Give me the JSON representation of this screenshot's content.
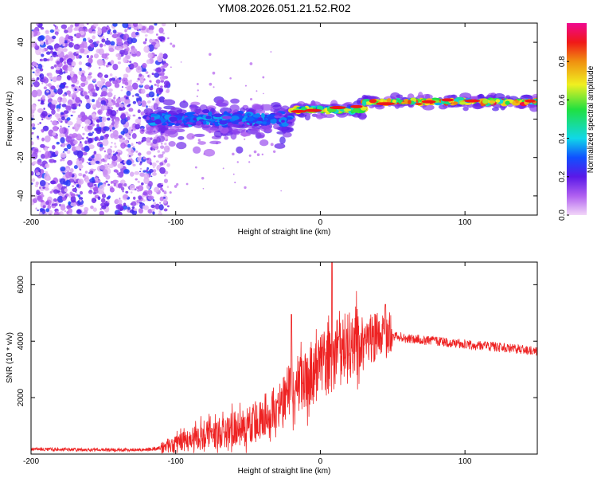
{
  "chart_data": [
    {
      "type": "heatmap",
      "title": "YM08.2026.051.21.52.R02",
      "xlabel": "Height of straight line (km)",
      "ylabel": "Frequency (Hz)",
      "xlim": [
        -200,
        150
      ],
      "ylim": [
        -50,
        50
      ],
      "xticks": [
        -200,
        -100,
        0,
        100
      ],
      "xtick_labels": [
        "-200",
        "-100",
        "0",
        "100"
      ],
      "yticks": [
        -40,
        -20,
        0,
        20,
        40
      ],
      "ytick_labels": [
        "-40",
        "-20",
        "0",
        "20",
        "40"
      ],
      "colorbar": {
        "label": "Normalized spectral amplitude",
        "range": [
          0.0,
          1.0
        ],
        "ticks": [
          0.0,
          0.2,
          0.4,
          0.6,
          0.8
        ],
        "tick_labels": [
          "0.0",
          "0.2",
          "0.4",
          "0.6",
          "0.8"
        ],
        "colormap": "rainbow (violet → blue → cyan → green → yellow → red → magenta)"
      },
      "regions": [
        {
          "x": [
            -200,
            -105
          ],
          "freq_center": 0,
          "freq_spread": 50,
          "amplitude": 0.05,
          "description": "scattered low-amplitude noise"
        },
        {
          "x": [
            -120,
            -20
          ],
          "freq_center": 0,
          "freq_spread": 8,
          "amplitude": 0.3
        },
        {
          "x": [
            -20,
            30
          ],
          "freq_center": 5,
          "freq_spread": 3,
          "amplitude": 0.6
        },
        {
          "x": [
            30,
            150
          ],
          "freq_center": 9,
          "freq_spread": 3,
          "amplitude": 0.75
        }
      ]
    },
    {
      "type": "line",
      "xlabel": "Height of straight line (km)",
      "ylabel": "SNR (10 * v/v)",
      "xlim": [
        -200,
        150
      ],
      "ylim": [
        0,
        6800
      ],
      "xticks": [
        -200,
        -100,
        0,
        100
      ],
      "xtick_labels": [
        "-200",
        "-100",
        "0",
        "100"
      ],
      "yticks": [
        2000,
        4000,
        6000
      ],
      "ytick_labels": [
        "2000",
        "4000",
        "6000"
      ],
      "line_color": "#ee2222",
      "series": [
        {
          "name": "SNR",
          "x": [
            -200,
            -180,
            -160,
            -140,
            -120,
            -110,
            -100,
            -90,
            -80,
            -70,
            -60,
            -50,
            -40,
            -30,
            -25,
            -20,
            -15,
            -10,
            -5,
            0,
            5,
            10,
            15,
            20,
            25,
            30,
            35,
            40,
            45,
            50,
            60,
            70,
            80,
            90,
            100,
            110,
            120,
            130,
            140,
            150
          ],
          "y": [
            180,
            160,
            150,
            150,
            160,
            220,
            350,
            500,
            650,
            750,
            850,
            1000,
            1250,
            1600,
            2000,
            2300,
            2500,
            2650,
            2850,
            3050,
            3250,
            3500,
            3650,
            3800,
            3950,
            4050,
            4100,
            4200,
            4200,
            4200,
            4100,
            4050,
            4000,
            3950,
            3900,
            3850,
            3800,
            3750,
            3700,
            3650
          ]
        }
      ],
      "spikes": [
        {
          "x": -20,
          "y": 4950
        },
        {
          "x": 8,
          "y": 6800
        },
        {
          "x": 45,
          "y": 5300
        }
      ]
    }
  ]
}
